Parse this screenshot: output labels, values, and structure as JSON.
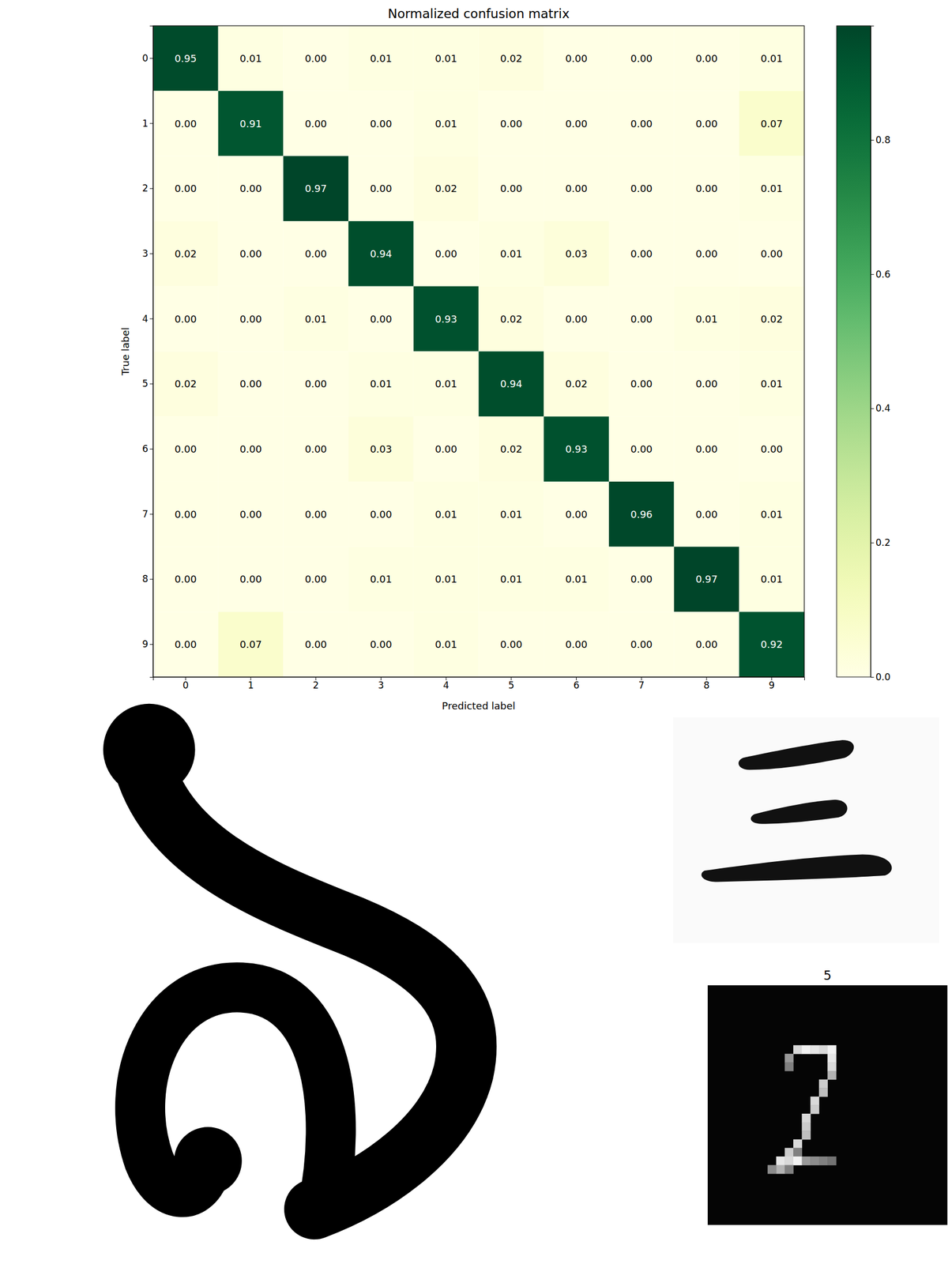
{
  "chart_data": {
    "type": "heatmap",
    "title": "Normalized confusion matrix",
    "x_label": "Predicted label",
    "y_label": "True label",
    "categories": [
      "0",
      "1",
      "2",
      "3",
      "4",
      "5",
      "6",
      "7",
      "8",
      "9"
    ],
    "y_categories": [
      "0",
      "1",
      "2",
      "3",
      "4",
      "5",
      "6",
      "7",
      "8",
      "9"
    ],
    "values": [
      [
        0.95,
        0.01,
        0.0,
        0.01,
        0.01,
        0.02,
        0.0,
        0.0,
        0.0,
        0.01
      ],
      [
        0.0,
        0.91,
        0.0,
        0.0,
        0.01,
        0.0,
        0.0,
        0.0,
        0.0,
        0.07
      ],
      [
        0.0,
        0.0,
        0.97,
        0.0,
        0.02,
        0.0,
        0.0,
        0.0,
        0.0,
        0.01
      ],
      [
        0.02,
        0.0,
        0.0,
        0.94,
        0.0,
        0.01,
        0.03,
        0.0,
        0.0,
        0.0
      ],
      [
        0.0,
        0.0,
        0.01,
        0.0,
        0.93,
        0.02,
        0.0,
        0.0,
        0.01,
        0.02
      ],
      [
        0.02,
        0.0,
        0.0,
        0.01,
        0.01,
        0.94,
        0.02,
        0.0,
        0.0,
        0.01
      ],
      [
        0.0,
        0.0,
        0.0,
        0.03,
        0.0,
        0.02,
        0.93,
        0.0,
        0.0,
        0.0
      ],
      [
        0.0,
        0.0,
        0.0,
        0.0,
        0.01,
        0.01,
        0.0,
        0.96,
        0.0,
        0.01
      ],
      [
        0.0,
        0.0,
        0.0,
        0.01,
        0.01,
        0.01,
        0.01,
        0.0,
        0.97,
        0.01
      ],
      [
        0.0,
        0.07,
        0.0,
        0.0,
        0.01,
        0.0,
        0.0,
        0.0,
        0.0,
        0.92
      ]
    ],
    "value_labels": [
      [
        "0.95",
        "0.01",
        "0.00",
        "0.01",
        "0.01",
        "0.02",
        "0.00",
        "0.00",
        "0.00",
        "0.01"
      ],
      [
        "0.00",
        "0.91",
        "0.00",
        "0.00",
        "0.01",
        "0.00",
        "0.00",
        "0.00",
        "0.00",
        "0.07"
      ],
      [
        "0.00",
        "0.00",
        "0.97",
        "0.00",
        "0.02",
        "0.00",
        "0.00",
        "0.00",
        "0.00",
        "0.01"
      ],
      [
        "0.02",
        "0.00",
        "0.00",
        "0.94",
        "0.00",
        "0.01",
        "0.03",
        "0.00",
        "0.00",
        "0.00"
      ],
      [
        "0.00",
        "0.00",
        "0.01",
        "0.00",
        "0.93",
        "0.02",
        "0.00",
        "0.00",
        "0.01",
        "0.02"
      ],
      [
        "0.02",
        "0.00",
        "0.00",
        "0.01",
        "0.01",
        "0.94",
        "0.02",
        "0.00",
        "0.00",
        "0.01"
      ],
      [
        "0.00",
        "0.00",
        "0.00",
        "0.03",
        "0.00",
        "0.02",
        "0.93",
        "0.00",
        "0.00",
        "0.00"
      ],
      [
        "0.00",
        "0.00",
        "0.00",
        "0.00",
        "0.01",
        "0.01",
        "0.00",
        "0.96",
        "0.00",
        "0.01"
      ],
      [
        "0.00",
        "0.00",
        "0.00",
        "0.01",
        "0.01",
        "0.01",
        "0.01",
        "0.00",
        "0.97",
        "0.01"
      ],
      [
        "0.00",
        "0.07",
        "0.00",
        "0.00",
        "0.01",
        "0.00",
        "0.00",
        "0.00",
        "0.00",
        "0.92"
      ]
    ],
    "data_labels": true,
    "color_range": [
      0,
      0.97
    ],
    "color_ticks": [
      {
        "value": 0,
        "label": "0.0"
      },
      0.2,
      0.4,
      0.6,
      0.8
    ]
  },
  "images": [
    {
      "title": "5"
    }
  ]
}
